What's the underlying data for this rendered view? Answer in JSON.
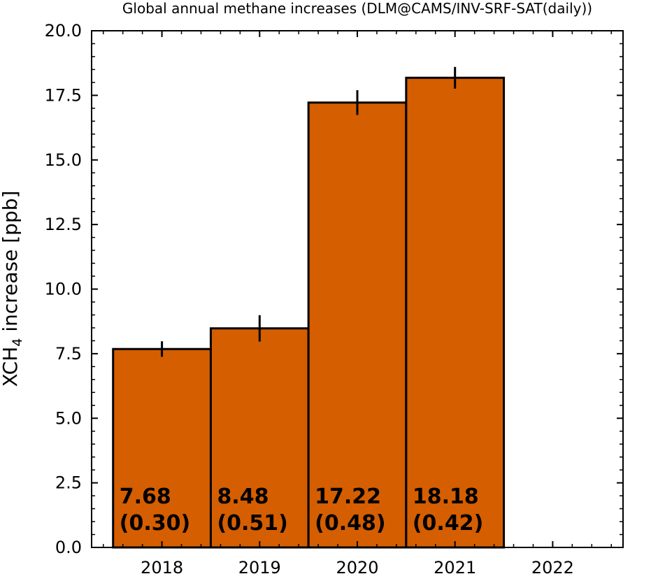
{
  "chart_data": {
    "type": "bar",
    "title": "Global annual methane increases (DLM@CAMS/INV-SRF-SAT(daily))",
    "ylabel_main": "XCH",
    "ylabel_sub": "4",
    "ylabel_rest": " increase [ppb]",
    "xlabel": "",
    "categories": [
      "2018",
      "2019",
      "2020",
      "2021"
    ],
    "x_ticks": [
      "2018",
      "2019",
      "2020",
      "2021",
      "2022"
    ],
    "values": [
      7.68,
      8.48,
      17.22,
      18.18
    ],
    "errors": [
      0.3,
      0.51,
      0.48,
      0.42
    ],
    "value_labels": [
      "7.68",
      "8.48",
      "17.22",
      "18.18"
    ],
    "error_labels": [
      "(0.30)",
      "(0.51)",
      "(0.48)",
      "(0.42)"
    ],
    "y_ticks": [
      "0.0",
      "2.5",
      "5.0",
      "7.5",
      "10.0",
      "12.5",
      "15.0",
      "17.5",
      "20.0"
    ],
    "ylim": [
      0,
      20
    ],
    "xlim": [
      2017.28,
      2022.72
    ],
    "bar_color": "#D55E00",
    "grid": false
  }
}
